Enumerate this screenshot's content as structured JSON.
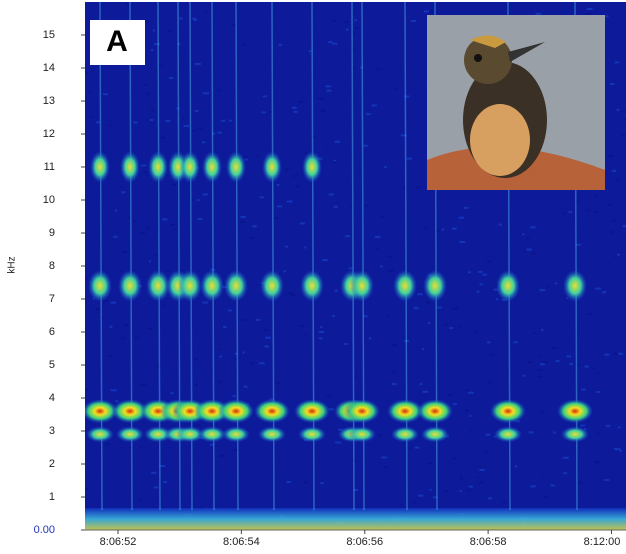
{
  "chart_data": {
    "type": "spectrogram",
    "panel_label": "A",
    "ylabel": "kHz",
    "ylim": [
      0,
      16
    ],
    "yticks": [
      {
        "value": 0,
        "label": "0.00"
      },
      1,
      2,
      3,
      4,
      5,
      6,
      7,
      8,
      9,
      10,
      11,
      12,
      13,
      14,
      15
    ],
    "xtick_labels": [
      "8:06:52",
      "8:06:54",
      "8:06:56",
      "8:06:58",
      "8:12:00"
    ]
  }
}
